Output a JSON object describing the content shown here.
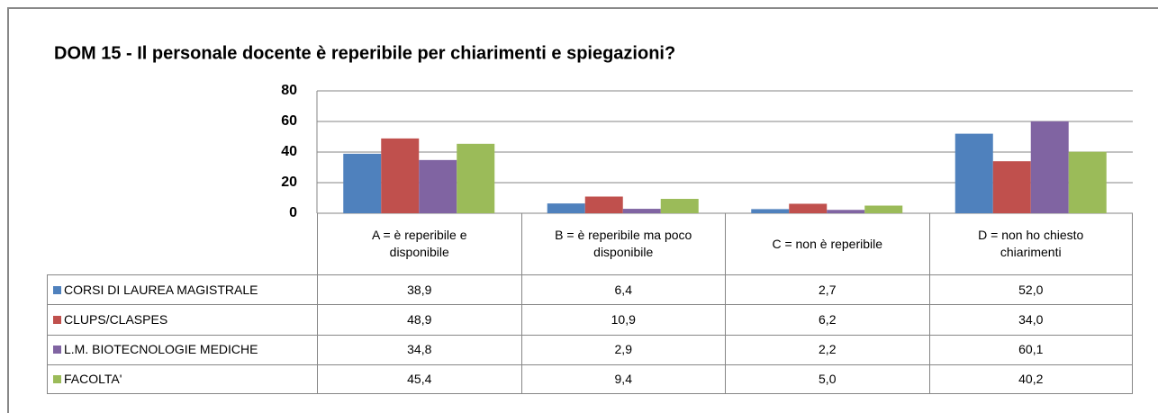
{
  "chart_data": {
    "type": "bar",
    "title": "DOM 15 - Il  personale docente è reperibile per chiarimenti e spiegazioni?",
    "categories": [
      "A = è reperibile e disponibile",
      "B = è reperibile ma poco disponibile",
      "C = non è reperibile",
      "D = non ho chiesto chiarimenti"
    ],
    "series": [
      {
        "name": "CORSI DI LAUREA MAGISTRALE",
        "color": "#4f81bd",
        "values": [
          38.9,
          6.4,
          2.7,
          52.0
        ],
        "value_labels": [
          "38,9",
          "6,4",
          "2,7",
          "52,0"
        ]
      },
      {
        "name": "CLUPS/CLASPES",
        "color": "#c0504d",
        "values": [
          48.9,
          10.9,
          6.2,
          34.0
        ],
        "value_labels": [
          "48,9",
          "10,9",
          "6,2",
          "34,0"
        ]
      },
      {
        "name": "L.M. BIOTECNOLOGIE MEDICHE",
        "color": "#8064a2",
        "values": [
          34.8,
          2.9,
          2.2,
          60.1
        ],
        "value_labels": [
          "34,8",
          "2,9",
          "2,2",
          "60,1"
        ]
      },
      {
        "name": "FACOLTA'",
        "color": "#9bbb59",
        "values": [
          45.4,
          9.4,
          5.0,
          40.2
        ],
        "value_labels": [
          "45,4",
          "9,4",
          "5,0",
          "40,2"
        ]
      }
    ],
    "ylim": [
      0,
      80
    ],
    "yticks": [
      0,
      20,
      40,
      60,
      80
    ],
    "grid": true
  }
}
